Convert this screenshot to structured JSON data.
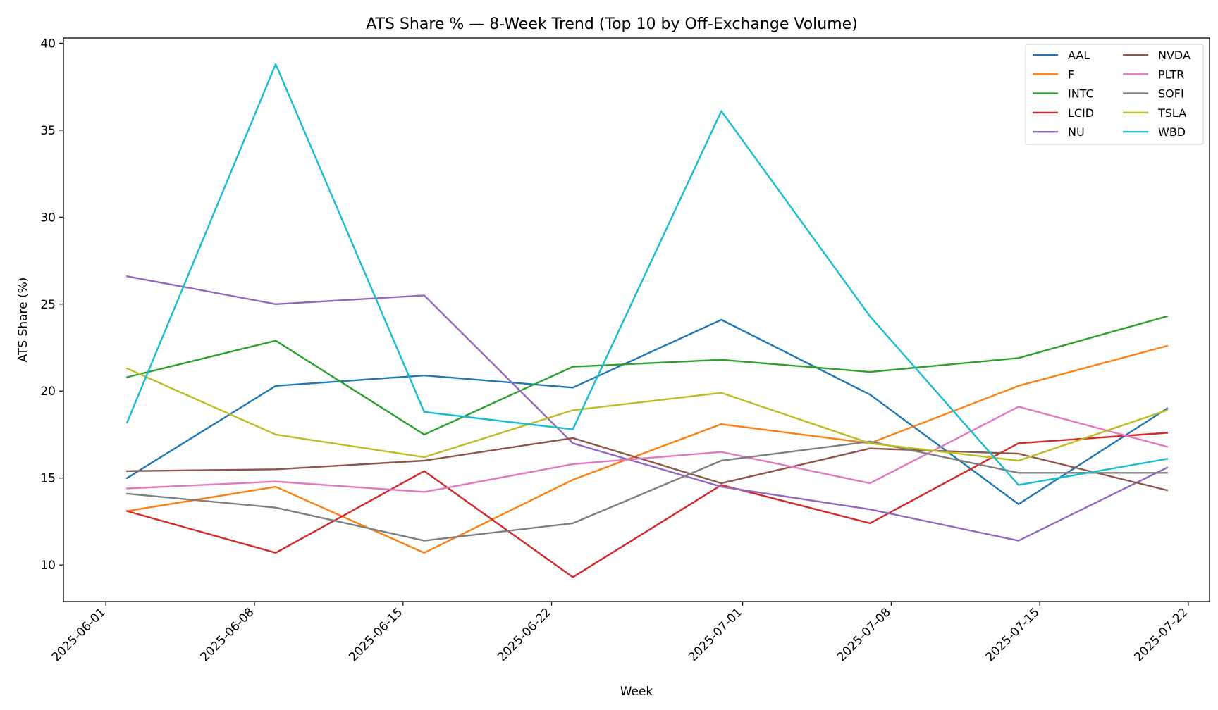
{
  "chart_data": {
    "type": "line",
    "title": "ATS Share % — 8-Week Trend (Top 10 by Off-Exchange Volume)",
    "xlabel": "Week",
    "ylabel": "ATS Share (%)",
    "x": [
      "2025-06-02",
      "2025-06-09",
      "2025-06-16",
      "2025-06-23",
      "2025-06-30",
      "2025-07-07",
      "2025-07-14",
      "2025-07-21"
    ],
    "xticks": [
      "2025-06-01",
      "2025-06-08",
      "2025-06-15",
      "2025-06-22",
      "2025-07-01",
      "2025-07-08",
      "2025-07-15",
      "2025-07-22"
    ],
    "xlim": [
      "2025-05-30",
      "2025-07-23"
    ],
    "yticks": [
      10,
      15,
      20,
      25,
      30,
      35,
      40
    ],
    "ylim": [
      7.9,
      40.3
    ],
    "grid": false,
    "legend": {
      "placement": "top-right",
      "columns": 2
    },
    "series": [
      {
        "name": "AAL",
        "color": "#1f77b4",
        "values": [
          15.0,
          20.3,
          20.9,
          20.2,
          24.1,
          19.8,
          13.5,
          19.0
        ]
      },
      {
        "name": "F",
        "color": "#ff7f0e",
        "values": [
          13.1,
          14.5,
          10.7,
          14.9,
          18.1,
          17.0,
          20.3,
          22.6
        ]
      },
      {
        "name": "INTC",
        "color": "#2ca02c",
        "values": [
          20.8,
          22.9,
          17.5,
          21.4,
          21.8,
          21.1,
          21.9,
          24.3
        ]
      },
      {
        "name": "LCID",
        "color": "#d62728",
        "values": [
          13.1,
          10.7,
          15.4,
          9.3,
          14.6,
          12.4,
          17.0,
          17.6
        ]
      },
      {
        "name": "NU",
        "color": "#9467bd",
        "values": [
          26.6,
          25.0,
          25.5,
          17.0,
          14.5,
          13.2,
          11.4,
          15.6
        ]
      },
      {
        "name": "NVDA",
        "color": "#8c564b",
        "values": [
          15.4,
          15.5,
          16.0,
          17.3,
          14.7,
          16.7,
          16.4,
          14.3
        ]
      },
      {
        "name": "PLTR",
        "color": "#e377c2",
        "values": [
          14.4,
          14.8,
          14.2,
          15.8,
          16.5,
          14.7,
          19.1,
          16.8
        ]
      },
      {
        "name": "SOFI",
        "color": "#7f7f7f",
        "values": [
          14.1,
          13.3,
          11.4,
          12.4,
          16.0,
          17.1,
          15.3,
          15.3
        ]
      },
      {
        "name": "TSLA",
        "color": "#bcbd22",
        "values": [
          21.3,
          17.5,
          16.2,
          18.9,
          19.9,
          17.0,
          16.0,
          18.9
        ]
      },
      {
        "name": "WBD",
        "color": "#17becf",
        "values": [
          18.2,
          38.8,
          18.8,
          17.8,
          36.1,
          24.3,
          14.6,
          16.1
        ]
      }
    ]
  }
}
